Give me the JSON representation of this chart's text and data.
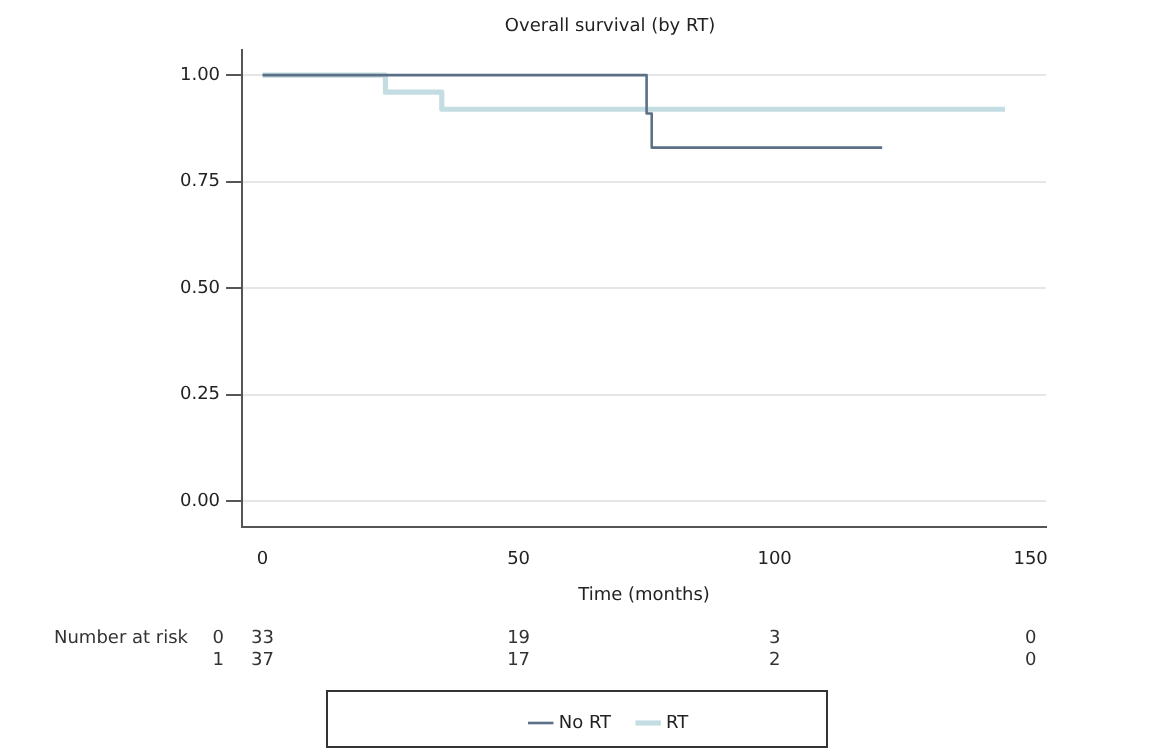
{
  "chart_data": {
    "type": "step",
    "title": "Overall survival (by RT)",
    "xlabel": "Time (months)",
    "xlim": [
      -4,
      153
    ],
    "xticks": [
      0,
      50,
      100,
      150
    ],
    "ylim": [
      -0.06,
      1.06
    ],
    "yticks": [
      {
        "value": 0,
        "label": "0.00"
      },
      {
        "value": 0.25,
        "label": "0.25"
      },
      {
        "value": 0.5,
        "label": "0.50"
      },
      {
        "value": 0.75,
        "label": "0.75"
      },
      {
        "value": 1,
        "label": "1.00"
      }
    ],
    "grid": "y",
    "legend": "bottom",
    "marker": "none",
    "line_style": "solid",
    "series": [
      {
        "name": "RT",
        "color": "#c4dde2",
        "x": [
          0,
          24,
          35,
          145
        ],
        "values": [
          1,
          0.96,
          0.92,
          0.92
        ]
      },
      {
        "name": "No RT",
        "color": "#5b6f86",
        "x": [
          0,
          75,
          76,
          121
        ],
        "values": [
          1,
          0.91,
          0.83,
          0.83
        ]
      }
    ],
    "annotations": [
      "Number at risk",
      "0",
      "33",
      "19",
      "3",
      "0",
      "1",
      "37",
      "17",
      "2",
      "0"
    ]
  }
}
